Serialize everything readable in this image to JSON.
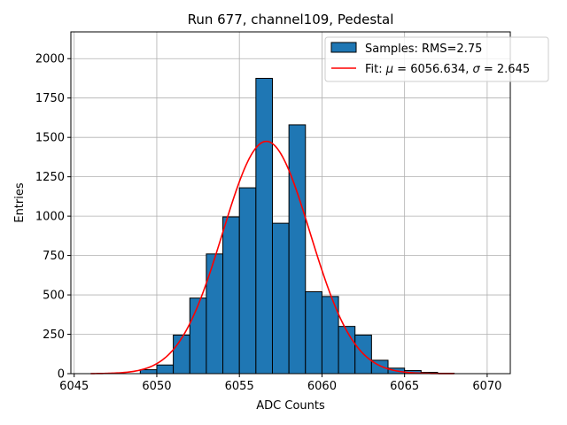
{
  "chart_data": {
    "type": "bar",
    "title": "Run 677, channel109, Pedestal",
    "xlabel": "ADC Counts",
    "ylabel": "Entries",
    "xlim": [
      6044.8,
      6071.4
    ],
    "ylim": [
      0,
      2170
    ],
    "xticks": [
      6045,
      6050,
      6055,
      6060,
      6065,
      6070
    ],
    "yticks": [
      0,
      250,
      500,
      750,
      1000,
      1250,
      1500,
      1750,
      2000
    ],
    "grid": true,
    "legend_position": "top-right",
    "histogram": {
      "name": "Samples: RMS=2.75",
      "color": "#1f77b4",
      "edge_color": "#000000",
      "bin_width": 1.0,
      "bins": [
        {
          "x": 6049.5,
          "count": 25
        },
        {
          "x": 6050.5,
          "count": 55
        },
        {
          "x": 6051.5,
          "count": 245
        },
        {
          "x": 6052.5,
          "count": 480
        },
        {
          "x": 6053.5,
          "count": 760
        },
        {
          "x": 6054.5,
          "count": 995
        },
        {
          "x": 6055.5,
          "count": 1180
        },
        {
          "x": 6056.5,
          "count": 1875
        },
        {
          "x": 6057.5,
          "count": 955
        },
        {
          "x": 6058.5,
          "count": 1580
        },
        {
          "x": 6059.5,
          "count": 520
        },
        {
          "x": 6060.5,
          "count": 490
        },
        {
          "x": 6061.5,
          "count": 300
        },
        {
          "x": 6062.5,
          "count": 245
        },
        {
          "x": 6063.5,
          "count": 85
        },
        {
          "x": 6064.5,
          "count": 35
        },
        {
          "x": 6065.5,
          "count": 20
        },
        {
          "x": 6066.5,
          "count": 8
        },
        {
          "x": 6067.5,
          "count": 3
        }
      ]
    },
    "fit": {
      "name_prefix": "Fit: ",
      "mu_symbol": "μ",
      "mu_text": " = 6056.634, ",
      "sigma_symbol": "σ",
      "sigma_text": " = 2.645",
      "color": "#ff0000",
      "mu": 6056.634,
      "sigma": 2.645,
      "amplitude": 1475,
      "x_range": [
        6046,
        6068
      ]
    }
  }
}
